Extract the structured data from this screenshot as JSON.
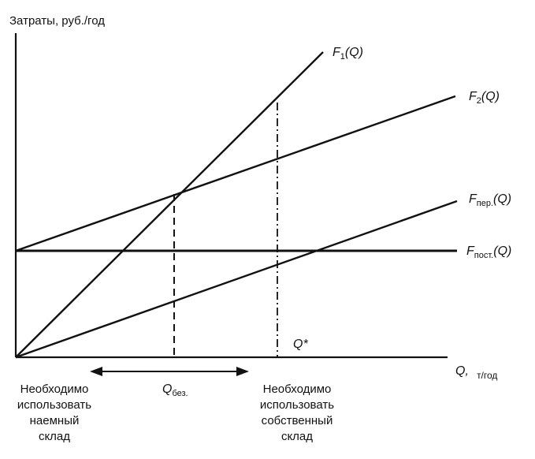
{
  "y_axis_label": "Затраты, руб./год",
  "x_axis_label": {
    "main": "Q,",
    "unit": "т/год"
  },
  "curves": {
    "f1": {
      "main": "F",
      "sub": "1",
      "tail": "(Q)"
    },
    "f2": {
      "main": "F",
      "sub": "2",
      "tail": "(Q)"
    },
    "fper": {
      "main": "F",
      "sub": "пер.",
      "tail": "(Q)"
    },
    "fpost": {
      "main": "F",
      "sub": "пост.",
      "tail": "(Q)"
    }
  },
  "q_star": "Q*",
  "q_bez": {
    "main": "Q",
    "sub": "без."
  },
  "left_note": [
    "Необходимо",
    "использовать",
    "наемный",
    "склад"
  ],
  "right_note": [
    "Необходимо",
    "использовать",
    "собственный",
    "склад"
  ]
}
